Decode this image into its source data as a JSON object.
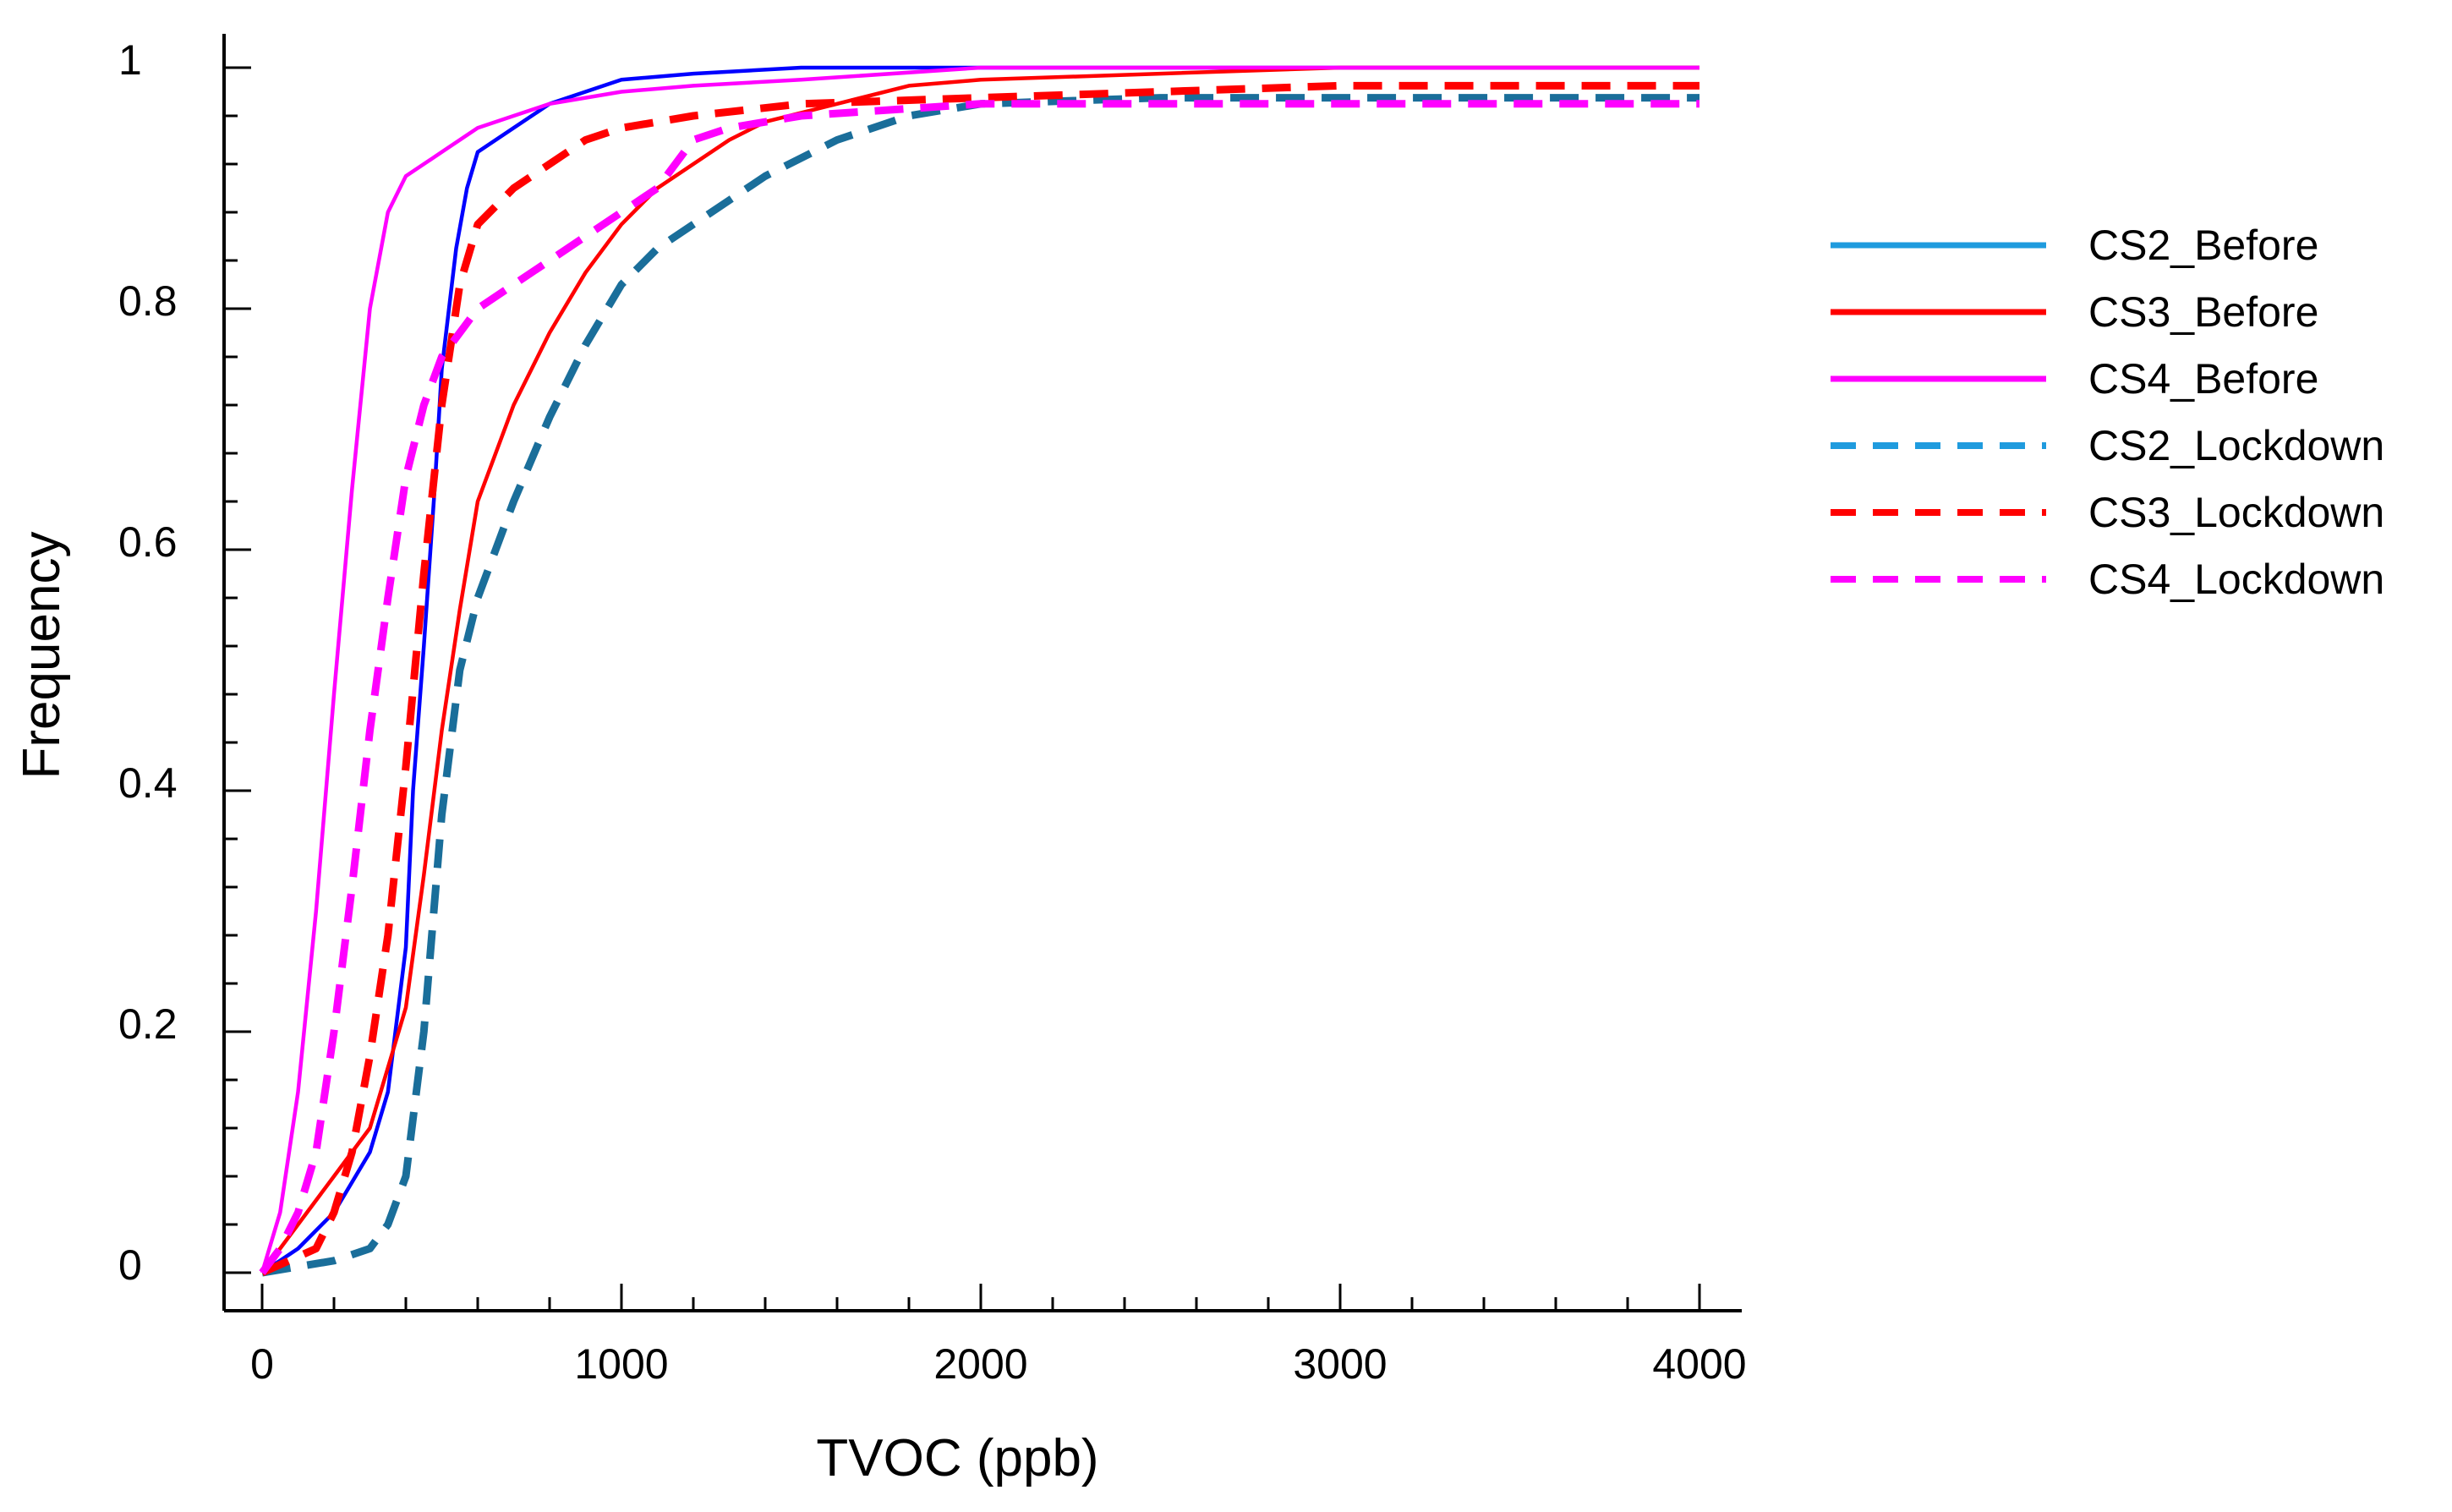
{
  "chart_data": {
    "type": "line",
    "title": "",
    "xlabel": "TVOC (ppb)",
    "ylabel": "Frequency",
    "xlim": [
      0,
      4000
    ],
    "ylim": [
      0,
      1
    ],
    "xticks": [
      0,
      1000,
      2000,
      3000,
      4000
    ],
    "xtick_labels": [
      "0",
      "1000",
      "2000",
      "3000",
      "4000"
    ],
    "yticks": [
      0,
      0.2,
      0.4,
      0.6,
      0.8,
      1
    ],
    "ytick_labels": [
      "0",
      "0.2",
      "0.4",
      "0.6",
      "0.8",
      "1"
    ],
    "grid": false,
    "legend_position": "right",
    "series": [
      {
        "name": "CS2_Before",
        "legend_color": "#1f9bde",
        "line_color": "#0000ff",
        "style": "solid",
        "x": [
          0,
          100,
          200,
          300,
          350,
          400,
          420,
          450,
          480,
          500,
          540,
          570,
          600,
          700,
          800,
          900,
          1000,
          1200,
          1500,
          1800,
          2000,
          2500,
          3000,
          4000
        ],
        "y": [
          0,
          0.02,
          0.05,
          0.1,
          0.15,
          0.27,
          0.4,
          0.52,
          0.65,
          0.75,
          0.85,
          0.9,
          0.93,
          0.95,
          0.97,
          0.98,
          0.99,
          0.995,
          1.0,
          1.0,
          1.0,
          1.0,
          1.0,
          1.0
        ]
      },
      {
        "name": "CS3_Before",
        "legend_color": "#ff0000",
        "line_color": "#ff0000",
        "style": "solid",
        "x": [
          0,
          100,
          200,
          300,
          400,
          450,
          500,
          550,
          600,
          700,
          800,
          900,
          1000,
          1100,
          1200,
          1300,
          1400,
          1600,
          1800,
          2000,
          2500,
          3000,
          4000
        ],
        "y": [
          0,
          0.04,
          0.08,
          0.12,
          0.22,
          0.33,
          0.45,
          0.55,
          0.64,
          0.72,
          0.78,
          0.83,
          0.87,
          0.9,
          0.92,
          0.94,
          0.955,
          0.97,
          0.985,
          0.99,
          0.995,
          1.0,
          1.0
        ]
      },
      {
        "name": "CS4_Before",
        "legend_color": "#ff00ff",
        "line_color": "#ff00ff",
        "style": "solid",
        "x": [
          0,
          50,
          100,
          150,
          200,
          250,
          300,
          350,
          400,
          500,
          600,
          700,
          800,
          1000,
          1200,
          1500,
          2000,
          3000,
          4000
        ],
        "y": [
          0,
          0.05,
          0.15,
          0.3,
          0.48,
          0.65,
          0.8,
          0.88,
          0.91,
          0.93,
          0.95,
          0.96,
          0.97,
          0.98,
          0.985,
          0.99,
          1.0,
          1.0,
          1.0
        ]
      },
      {
        "name": "CS2_Lockdown",
        "legend_color": "#1f9bde",
        "line_color": "#1a6e9a",
        "style": "dashed",
        "x": [
          0,
          100,
          200,
          300,
          350,
          400,
          450,
          500,
          550,
          600,
          700,
          800,
          900,
          1000,
          1100,
          1200,
          1400,
          1600,
          1800,
          2000,
          2500,
          3000,
          4000
        ],
        "y": [
          0,
          0.005,
          0.01,
          0.02,
          0.04,
          0.08,
          0.2,
          0.38,
          0.5,
          0.56,
          0.64,
          0.71,
          0.77,
          0.82,
          0.85,
          0.87,
          0.91,
          0.94,
          0.96,
          0.97,
          0.975,
          0.975,
          0.975
        ]
      },
      {
        "name": "CS3_Lockdown",
        "legend_color": "#ff0000",
        "line_color": "#ff0000",
        "style": "dashed",
        "x": [
          0,
          150,
          200,
          250,
          300,
          350,
          400,
          450,
          500,
          550,
          600,
          700,
          800,
          900,
          1000,
          1200,
          1500,
          2000,
          3000,
          4000
        ],
        "y": [
          0,
          0.02,
          0.05,
          0.1,
          0.18,
          0.28,
          0.42,
          0.58,
          0.72,
          0.82,
          0.87,
          0.9,
          0.92,
          0.94,
          0.95,
          0.96,
          0.97,
          0.975,
          0.985,
          0.985
        ]
      },
      {
        "name": "CS4_Lockdown",
        "legend_color": "#ff00ff",
        "line_color": "#ff00ff",
        "style": "dashed",
        "x": [
          0,
          50,
          100,
          150,
          200,
          250,
          300,
          350,
          400,
          450,
          500,
          600,
          700,
          800,
          900,
          1000,
          1100,
          1200,
          1300,
          1500,
          2000,
          3000,
          4000
        ],
        "y": [
          0,
          0.02,
          0.05,
          0.1,
          0.2,
          0.32,
          0.45,
          0.56,
          0.66,
          0.72,
          0.76,
          0.8,
          0.82,
          0.84,
          0.86,
          0.88,
          0.9,
          0.94,
          0.95,
          0.96,
          0.97,
          0.97,
          0.97
        ]
      }
    ]
  }
}
